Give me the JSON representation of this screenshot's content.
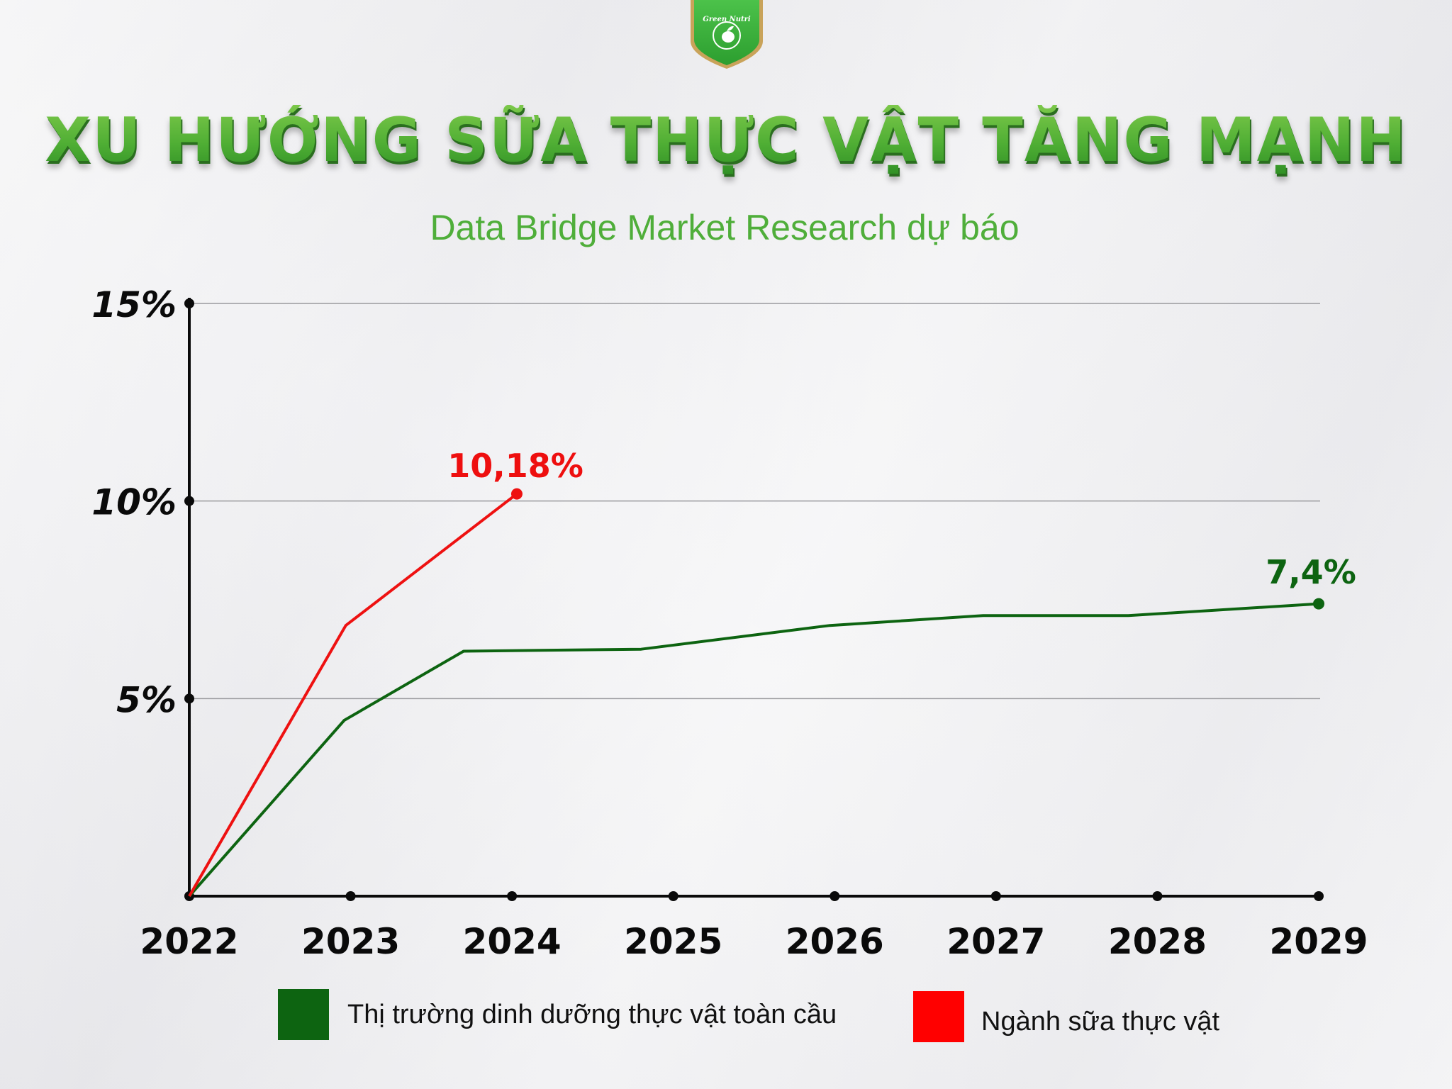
{
  "brand": {
    "logo_text": "Green Nutri",
    "logo_icon": "shield-apple-leaf-icon",
    "colors": {
      "shield": "#3db33a",
      "border": "#c9a35a"
    }
  },
  "header": {
    "title": "XU HƯỚNG SỮA THỰC VẬT TĂNG MẠNH",
    "subtitle": "Data Bridge Market Research dự báo"
  },
  "chart_data": {
    "type": "line",
    "title": "XU HƯỚNG SỮA THỰC VẬT TĂNG MẠNH",
    "subtitle": "Data Bridge Market Research dự báo",
    "xlabel": "",
    "ylabel": "",
    "x": [
      "2022",
      "2023",
      "2024",
      "2025",
      "2026",
      "2027",
      "2028",
      "2029"
    ],
    "yticks": [
      "5%",
      "10%",
      "15%"
    ],
    "ylim": [
      0,
      15
    ],
    "grid": "horizontal",
    "legend_position": "bottom",
    "series": [
      {
        "name": "Thị trường dinh dưỡng thực vật toàn cầu",
        "color": "#0d6411",
        "points": [
          {
            "x": 2022.0,
            "y": 0.0
          },
          {
            "x": 2022.96,
            "y": 4.45
          },
          {
            "x": 2023.7,
            "y": 6.2
          },
          {
            "x": 2024.8,
            "y": 6.25
          },
          {
            "x": 2025.97,
            "y": 6.85
          },
          {
            "x": 2026.92,
            "y": 7.1
          },
          {
            "x": 2027.82,
            "y": 7.1
          },
          {
            "x": 2029.0,
            "y": 7.4
          }
        ],
        "end_label": "7,4%"
      },
      {
        "name": "Ngành sữa thực vật",
        "color": "#ee1111",
        "points": [
          {
            "x": 2022.0,
            "y": 0.0
          },
          {
            "x": 2022.97,
            "y": 6.85
          },
          {
            "x": 2024.03,
            "y": 10.18
          }
        ],
        "end_label": "10,18%"
      }
    ]
  },
  "axes": {
    "y_ticks": [
      {
        "label": "15%",
        "value": 15
      },
      {
        "label": "10%",
        "value": 10
      },
      {
        "label": "5%",
        "value": 5
      }
    ],
    "x_ticks": [
      "2022",
      "2023",
      "2024",
      "2025",
      "2026",
      "2027",
      "2028",
      "2029"
    ]
  },
  "annotations": {
    "red_end": "10,18%",
    "green_end": "7,4%"
  },
  "legend": {
    "items": [
      {
        "label": "Thị trường dinh dưỡng thực vật toàn cầu",
        "color": "#0d6411"
      },
      {
        "label": "Ngành sữa thực vật",
        "color": "#ff0000"
      }
    ]
  }
}
